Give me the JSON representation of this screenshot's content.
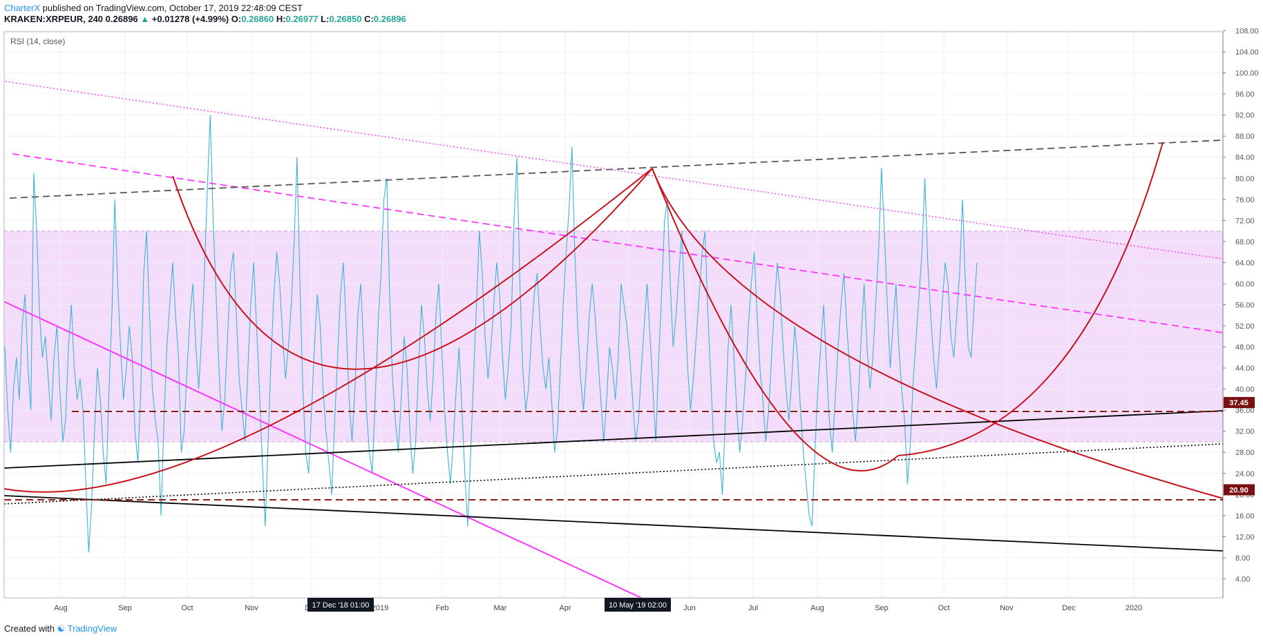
{
  "header": {
    "author": "CharterX",
    "published_text": "published on TradingView.com, October 17, 2019 22:48:09 CEST",
    "symbol": "KRAKEN:XRPEUR, 240",
    "price": "0.26896",
    "change_arrow": "▲",
    "change": "+0.01278 (+4.99%)",
    "open_label": "O:",
    "open": "0.26860",
    "high_label": "H:",
    "high": "0.26977",
    "low_label": "L:",
    "low": "0.26850",
    "close_label": "C:",
    "close": "0.26896"
  },
  "footer": {
    "created_with": "Created with",
    "brand": "TradingView"
  },
  "chart_data": {
    "type": "line",
    "indicator_label": "RSI (14, close)",
    "ylim": [
      0,
      110
    ],
    "y_ticks": [
      "108.00",
      "104.00",
      "100.00",
      "96.00",
      "92.00",
      "88.00",
      "84.00",
      "80.00",
      "76.00",
      "72.00",
      "68.00",
      "64.00",
      "60.00",
      "56.00",
      "52.00",
      "48.00",
      "44.00",
      "40.00",
      "36.00",
      "32.00",
      "28.00",
      "24.00",
      "20.00",
      "16.00",
      "12.00",
      "8.00",
      "4.00"
    ],
    "x_tick_labels": [
      "Aug",
      "Sep",
      "Oct",
      "Nov",
      "Dec",
      "2019",
      "Feb",
      "Mar",
      "Apr",
      "May",
      "Jun",
      "Jul",
      "Aug",
      "Sep",
      "Oct",
      "Nov",
      "Dec",
      "2020"
    ],
    "crosshair_labels": [
      {
        "text": "17 Dec '18  01:00"
      },
      {
        "text": "10 May '19  02:00"
      }
    ],
    "price_labels": [
      {
        "value": 37.45,
        "text": "37.45"
      },
      {
        "value": 20.9,
        "text": "20.90"
      }
    ],
    "overbought": 70,
    "oversold": 30,
    "colors": {
      "rsi": "#3bb3d8",
      "band_fill": "#f3ddfb",
      "curve": "#c8101a",
      "magenta": "#ff33ff",
      "dark_red": "#8b1a1a",
      "gray_dash": "#555555",
      "label_bg": "#7a1010"
    },
    "series": [
      {
        "values_sampled_every_3rd_bar": [
          48,
          36,
          28,
          40,
          46,
          38,
          52,
          58,
          44,
          36,
          81,
          70,
          54,
          46,
          50,
          42,
          34,
          46,
          52,
          40,
          30,
          34,
          48,
          56,
          44,
          38,
          42,
          36,
          22,
          9,
          18,
          32,
          44,
          38,
          28,
          22,
          40,
          54,
          76,
          60,
          48,
          38,
          44,
          52,
          46,
          32,
          26,
          40,
          62,
          70,
          54,
          40,
          34,
          30,
          16,
          34,
          48,
          56,
          64,
          54,
          46,
          28,
          32,
          44,
          54,
          60,
          48,
          40,
          50,
          62,
          78,
          92,
          72,
          58,
          44,
          32,
          38,
          50,
          62,
          66,
          54,
          42,
          36,
          30,
          44,
          56,
          64,
          52,
          40,
          26,
          14,
          30,
          46,
          58,
          66,
          60,
          50,
          42,
          48,
          56,
          68,
          84,
          60,
          40,
          28,
          24,
          36,
          48,
          58,
          52,
          40,
          32,
          26,
          20,
          34,
          46,
          58,
          64,
          52,
          38,
          30,
          40,
          54,
          60,
          48,
          36,
          28,
          24,
          38,
          52,
          62,
          76,
          80,
          58,
          42,
          34,
          28,
          38,
          50,
          44,
          32,
          24,
          30,
          44,
          56,
          50,
          40,
          34,
          42,
          54,
          60,
          48,
          36,
          28,
          22,
          30,
          40,
          48,
          36,
          24,
          14,
          28,
          42,
          56,
          70,
          62,
          50,
          42,
          48,
          56,
          64,
          58,
          46,
          38,
          44,
          52,
          72,
          84,
          60,
          44,
          36,
          40,
          50,
          58,
          62,
          52,
          44,
          40,
          46,
          38,
          28,
          32,
          44,
          56,
          66,
          74,
          86,
          66,
          52,
          42,
          36,
          44,
          54,
          60,
          54,
          46,
          38,
          30,
          38,
          48,
          44,
          38,
          46,
          60,
          56,
          52,
          46,
          38,
          30,
          34,
          44,
          52,
          60,
          50,
          40,
          30,
          46,
          58,
          72,
          76,
          60,
          48,
          54,
          62,
          70,
          56,
          44,
          36,
          42,
          50,
          58,
          66,
          70,
          54,
          42,
          30,
          26,
          28,
          20,
          34,
          48,
          56,
          46,
          36,
          28,
          34,
          42,
          52,
          60,
          66,
          54,
          44,
          38,
          30,
          36,
          46,
          56,
          64,
          58,
          48,
          40,
          34,
          42,
          52,
          46,
          36,
          28,
          22,
          16,
          14,
          28,
          40,
          48,
          56,
          44,
          34,
          28,
          38,
          48,
          56,
          62,
          52,
          44,
          36,
          30,
          38,
          50,
          60,
          48,
          40,
          46,
          56,
          66,
          82,
          70,
          56,
          44,
          52,
          60,
          48,
          40,
          34,
          22,
          30,
          42,
          50,
          58,
          66,
          80,
          64,
          54,
          46,
          40,
          48,
          56,
          64,
          60,
          50,
          46,
          54,
          62,
          76,
          60,
          48,
          46,
          56,
          64
        ]
      }
    ],
    "trendlines": [
      {
        "name": "red-arc-left-high"
      },
      {
        "name": "red-arc-left-low"
      },
      {
        "name": "red-arc-right-high"
      },
      {
        "name": "red-arc-right-low"
      },
      {
        "name": "red-arc-future"
      }
    ]
  }
}
